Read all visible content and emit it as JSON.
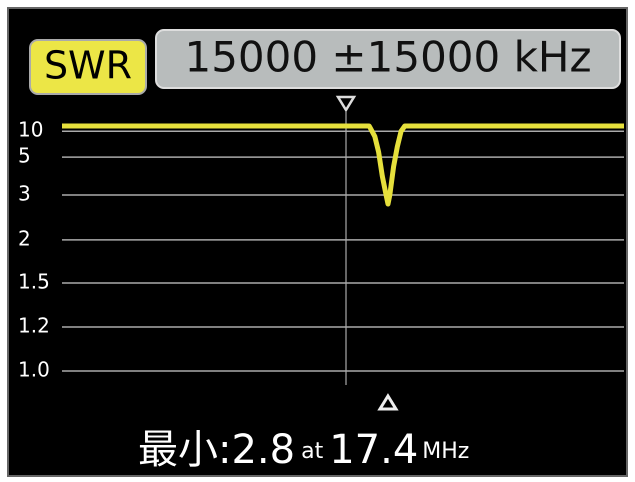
{
  "chart_data": {
    "type": "line",
    "mode": "SWR",
    "span": "15000 ±15000 kHz",
    "x": [
      0,
      16.4,
      16.7,
      16.9,
      17.1,
      17.3,
      17.4,
      17.5,
      17.7,
      17.9,
      18.1,
      18.3,
      30
    ],
    "series": [
      {
        "color": "#e6e03c",
        "values": [
          11,
          11,
          9,
          6,
          4,
          3,
          2.8,
          3,
          4.5,
          7,
          10,
          11,
          11
        ]
      }
    ],
    "xlim": [
      0,
      30
    ],
    "ylim": [
      1.0,
      12
    ],
    "yticks": [
      {
        "value": 1,
        "label": "1.0"
      },
      1.2,
      1.5,
      2,
      3,
      5,
      10
    ],
    "grid": true,
    "readout": {
      "label": "最小:",
      "swr": "2.8",
      "at": "at",
      "freq": "17.4",
      "unit": "MHz"
    }
  }
}
